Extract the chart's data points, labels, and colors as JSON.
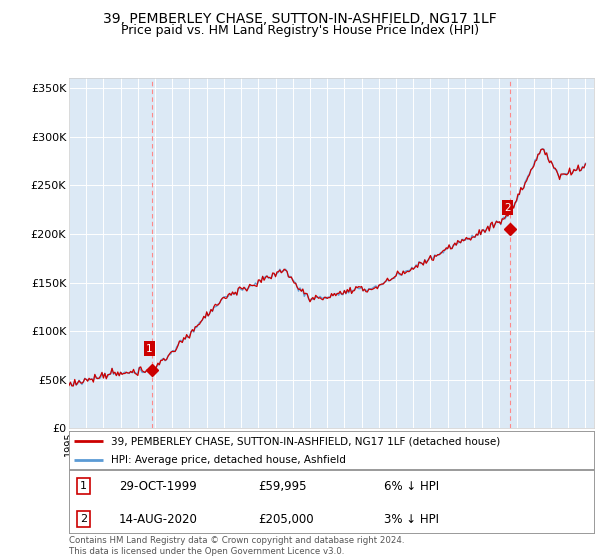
{
  "title": "39, PEMBERLEY CHASE, SUTTON-IN-ASHFIELD, NG17 1LF",
  "subtitle": "Price paid vs. HM Land Registry's House Price Index (HPI)",
  "title_fontsize": 10,
  "subtitle_fontsize": 9,
  "background_color": "#ffffff",
  "plot_bg_color": "#dce9f5",
  "ylabel": "",
  "ylim": [
    0,
    360000
  ],
  "yticks": [
    0,
    50000,
    100000,
    150000,
    200000,
    250000,
    300000,
    350000
  ],
  "ytick_labels": [
    "£0",
    "£50K",
    "£100K",
    "£150K",
    "£200K",
    "£250K",
    "£300K",
    "£350K"
  ],
  "sale1_date": 1999.83,
  "sale1_price": 59995,
  "sale1_label": "1",
  "sale2_date": 2020.62,
  "sale2_price": 205000,
  "sale2_label": "2",
  "hpi_color": "#5b9bd5",
  "price_color": "#cc0000",
  "dashed_line_color": "#ff9999",
  "grid_color": "#ffffff",
  "legend_entries": [
    "39, PEMBERLEY CHASE, SUTTON-IN-ASHFIELD, NG17 1LF (detached house)",
    "HPI: Average price, detached house, Ashfield"
  ],
  "footer_text": "Contains HM Land Registry data © Crown copyright and database right 2024.\nThis data is licensed under the Open Government Licence v3.0.",
  "table_rows": [
    [
      "1",
      "29-OCT-1999",
      "£59,995",
      "6% ↓ HPI"
    ],
    [
      "2",
      "14-AUG-2020",
      "£205,000",
      "3% ↓ HPI"
    ]
  ]
}
